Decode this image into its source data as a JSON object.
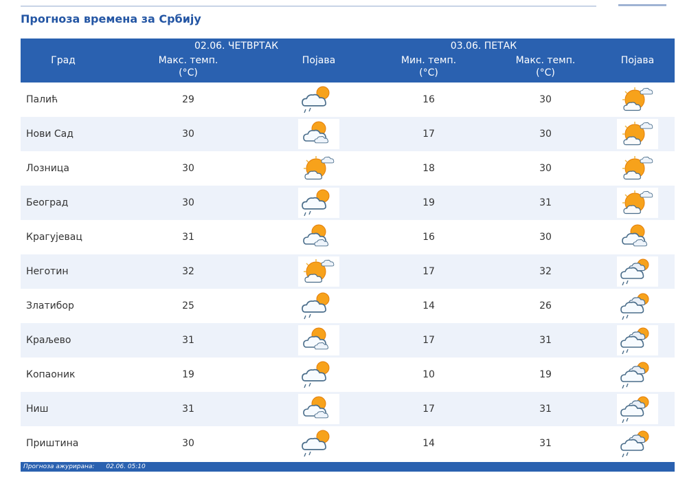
{
  "page_title": "Прогноза времена за Србију",
  "header": {
    "city_label": "Град",
    "day1_label": "02.06. ЧЕТВРТАК",
    "day2_label": "03.06. ПЕТАК",
    "max_temp_label": "Макс. темп.",
    "min_temp_label": "Мин. темп.",
    "unit_label": "(°C)",
    "phenomenon_label": "Појава"
  },
  "rows": [
    {
      "city": "Палић",
      "d1_max": "29",
      "d1_icon": "sun-cloud-light-rain",
      "d2_min": "16",
      "d2_max": "30",
      "d2_icon": "mostly-sunny"
    },
    {
      "city": "Нови Сад",
      "d1_max": "30",
      "d1_icon": "partly-cloudy",
      "d2_min": "17",
      "d2_max": "30",
      "d2_icon": "mostly-sunny"
    },
    {
      "city": "Лозница",
      "d1_max": "30",
      "d1_icon": "mostly-sunny",
      "d2_min": "18",
      "d2_max": "30",
      "d2_icon": "mostly-sunny"
    },
    {
      "city": "Београд",
      "d1_max": "30",
      "d1_icon": "sun-cloud-light-rain",
      "d2_min": "19",
      "d2_max": "31",
      "d2_icon": "mostly-sunny"
    },
    {
      "city": "Крагујевац",
      "d1_max": "31",
      "d1_icon": "partly-cloudy",
      "d2_min": "16",
      "d2_max": "30",
      "d2_icon": "partly-cloudy"
    },
    {
      "city": "Неготин",
      "d1_max": "32",
      "d1_icon": "mostly-sunny",
      "d2_min": "17",
      "d2_max": "32",
      "d2_icon": "cloudy-light-rain"
    },
    {
      "city": "Златибор",
      "d1_max": "25",
      "d1_icon": "sun-cloud-light-rain",
      "d2_min": "14",
      "d2_max": "26",
      "d2_icon": "cloudy-light-rain"
    },
    {
      "city": "Краљево",
      "d1_max": "31",
      "d1_icon": "partly-cloudy",
      "d2_min": "17",
      "d2_max": "31",
      "d2_icon": "cloudy-light-rain"
    },
    {
      "city": "Копаоник",
      "d1_max": "19",
      "d1_icon": "sun-cloud-light-rain",
      "d2_min": "10",
      "d2_max": "19",
      "d2_icon": "cloudy-light-rain"
    },
    {
      "city": "Ниш",
      "d1_max": "31",
      "d1_icon": "partly-cloudy",
      "d2_min": "17",
      "d2_max": "31",
      "d2_icon": "cloudy-light-rain"
    },
    {
      "city": "Приштина",
      "d1_max": "30",
      "d1_icon": "sun-cloud-light-rain",
      "d2_min": "14",
      "d2_max": "31",
      "d2_icon": "cloudy-light-rain"
    }
  ],
  "footer": {
    "label": "Прогноза ажурирана:",
    "value": "02.06. 05:10"
  }
}
